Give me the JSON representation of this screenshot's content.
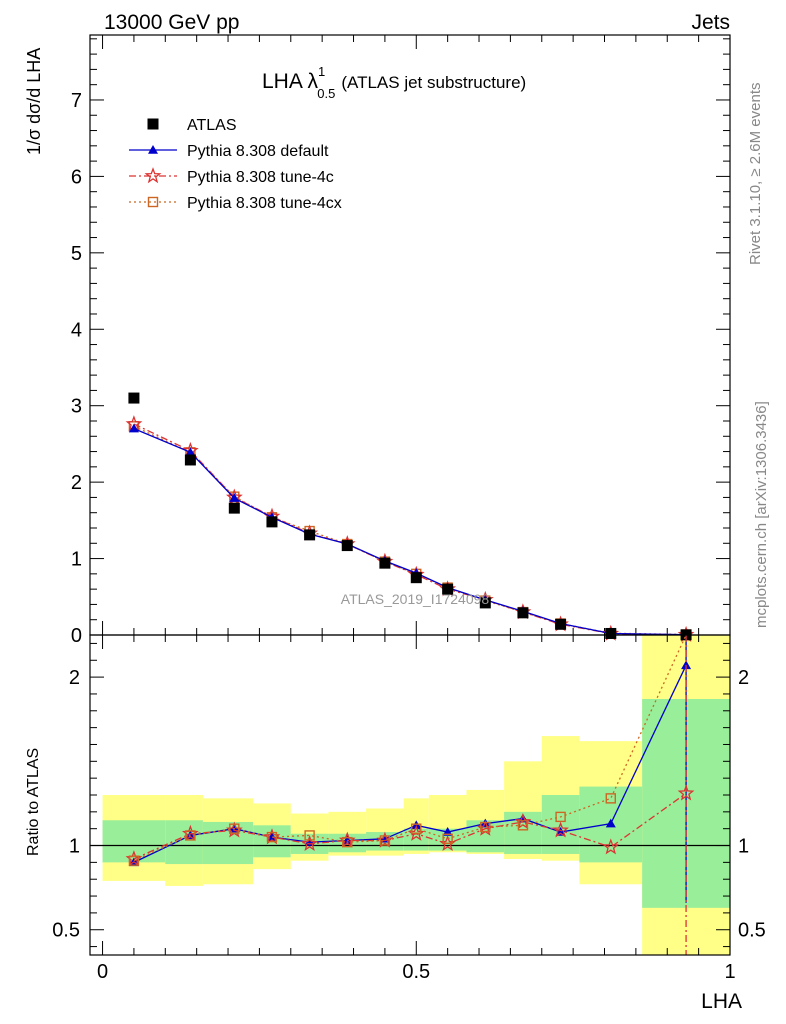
{
  "header": {
    "left": "13000 GeV pp",
    "right": "Jets"
  },
  "side_labels": {
    "rivet": "Rivet 3.1.10, ≥ 2.6M events",
    "mcplots": "mcplots.cern.ch [arXiv:1306.3436]"
  },
  "watermark": "ATLAS_2019_I1724098",
  "plot_title": {
    "main": "LHA λ",
    "sup": "1",
    "sub": "0.5",
    "suffix": "(ATLAS jet substructure)"
  },
  "y_label_top": "1/σ dσ/d LHA",
  "y_label_bottom": "Ratio to ATLAS",
  "x_label": "LHA",
  "legend": [
    {
      "label": "ATLAS",
      "color": "#000000",
      "marker": "filled-square",
      "line": "none"
    },
    {
      "label": "Pythia 8.308 default",
      "color": "#0000cc",
      "marker": "filled-triangle",
      "line": "solid"
    },
    {
      "label": "Pythia 8.308 tune-4c",
      "color": "#dd3333",
      "marker": "star",
      "line": "dash-dot"
    },
    {
      "label": "Pythia 8.308 tune-4cx",
      "color": "#cc6622",
      "marker": "open-square",
      "line": "dotted"
    }
  ],
  "chart_data": {
    "type": "line",
    "x": [
      0.05,
      0.14,
      0.21,
      0.27,
      0.33,
      0.39,
      0.45,
      0.5,
      0.55,
      0.61,
      0.67,
      0.73,
      0.81,
      0.93
    ],
    "top": {
      "ylim": [
        0,
        7.85
      ],
      "yticks": [
        0,
        1,
        2,
        3,
        4,
        5,
        6,
        7
      ],
      "series": [
        {
          "name": "ATLAS",
          "values": [
            3.1,
            2.29,
            1.66,
            1.48,
            1.31,
            1.17,
            0.94,
            0.75,
            0.6,
            0.42,
            0.29,
            0.14,
            0.02,
            0.002
          ]
        },
        {
          "name": "Pythia 8.308 default",
          "values": [
            2.7,
            2.39,
            1.79,
            1.54,
            1.32,
            1.19,
            0.97,
            0.81,
            0.62,
            0.46,
            0.31,
            0.15,
            0.02,
            0.004
          ]
        },
        {
          "name": "Pythia 8.308 tune-4c",
          "values": [
            2.76,
            2.41,
            1.8,
            1.55,
            1.33,
            1.19,
            0.96,
            0.79,
            0.6,
            0.46,
            0.3,
            0.14,
            0.018,
            0.003
          ]
        },
        {
          "name": "Pythia 8.308 tune-4cx",
          "values": [
            2.73,
            2.39,
            1.81,
            1.54,
            1.36,
            1.19,
            0.96,
            0.8,
            0.62,
            0.45,
            0.3,
            0.15,
            0.023,
            0.007
          ]
        }
      ]
    },
    "ratio": {
      "ylim": [
        0.35,
        2.25
      ],
      "yticks": [
        0.5,
        1,
        2
      ],
      "reference_line": 1,
      "bins": [
        [
          0.0,
          0.1
        ],
        [
          0.1,
          0.16
        ],
        [
          0.16,
          0.24
        ],
        [
          0.24,
          0.3
        ],
        [
          0.3,
          0.36
        ],
        [
          0.36,
          0.42
        ],
        [
          0.42,
          0.48
        ],
        [
          0.48,
          0.52
        ],
        [
          0.52,
          0.58
        ],
        [
          0.58,
          0.64
        ],
        [
          0.64,
          0.7
        ],
        [
          0.7,
          0.76
        ],
        [
          0.76,
          0.86
        ],
        [
          0.86,
          1.0
        ]
      ],
      "band_inner": [
        [
          0.9,
          1.15
        ],
        [
          0.89,
          1.15
        ],
        [
          0.89,
          1.14
        ],
        [
          0.93,
          1.12
        ],
        [
          0.95,
          1.07
        ],
        [
          0.96,
          1.07
        ],
        [
          0.97,
          1.08
        ],
        [
          0.97,
          1.1
        ],
        [
          0.97,
          1.1
        ],
        [
          0.96,
          1.15
        ],
        [
          0.95,
          1.2
        ],
        [
          0.95,
          1.3
        ],
        [
          0.9,
          1.35
        ],
        [
          0.63,
          1.87
        ]
      ],
      "band_outer": [
        [
          0.79,
          1.3
        ],
        [
          0.76,
          1.3
        ],
        [
          0.77,
          1.28
        ],
        [
          0.86,
          1.25
        ],
        [
          0.91,
          1.19
        ],
        [
          0.94,
          1.2
        ],
        [
          0.94,
          1.22
        ],
        [
          0.95,
          1.28
        ],
        [
          0.96,
          1.3
        ],
        [
          0.95,
          1.33
        ],
        [
          0.92,
          1.5
        ],
        [
          0.91,
          1.65
        ],
        [
          0.77,
          1.62
        ],
        [
          0.25,
          2.5
        ]
      ],
      "series": [
        {
          "name": "Pythia 8.308 default",
          "values": [
            0.9,
            1.06,
            1.1,
            1.05,
            1.02,
            1.03,
            1.04,
            1.12,
            1.08,
            1.13,
            1.16,
            1.08,
            1.13,
            2.07
          ],
          "err_last": [
            0.66,
            2.3
          ]
        },
        {
          "name": "Pythia 8.308 tune-4c",
          "values": [
            0.92,
            1.07,
            1.09,
            1.05,
            1.01,
            1.03,
            1.03,
            1.07,
            1.01,
            1.1,
            1.14,
            1.09,
            0.99,
            1.31
          ],
          "err_last": [
            0.25,
            2.3
          ]
        },
        {
          "name": "Pythia 8.308 tune-4cx",
          "values": [
            0.91,
            1.06,
            1.1,
            1.05,
            1.06,
            1.02,
            1.03,
            1.1,
            1.04,
            1.11,
            1.12,
            1.17,
            1.28,
            3.5
          ]
        }
      ]
    },
    "xlim": [
      -0.02,
      1.0
    ],
    "xticks": [
      0,
      0.5,
      1
    ],
    "xticklabels": [
      "0",
      "0.5",
      "1"
    ]
  }
}
